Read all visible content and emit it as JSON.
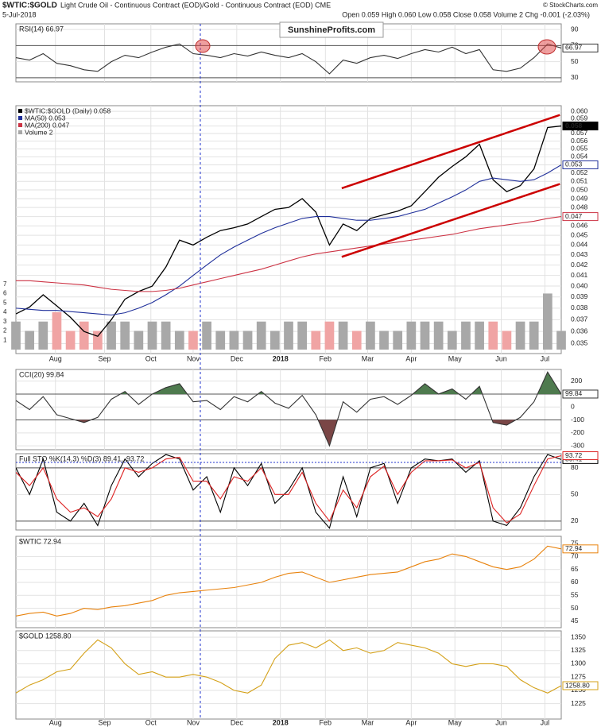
{
  "header": {
    "title": "$WTIC:$GOLD",
    "subtitle": "Light Crude Oil - Continuous Contract (EOD)/Gold - Continuous Contract (EOD) CME",
    "date": "5-Jul-2018",
    "quote": "Open 0.059 High 0.060 Low 0.058 Close 0.058 Volume 2 Chg -0.001 (-2.03%)",
    "credit": "© StockCharts.com",
    "watermark": "SunshineProfits.com"
  },
  "time": {
    "x": [
      0,
      1,
      2,
      3,
      4,
      5,
      6,
      7,
      8,
      9,
      10,
      11,
      12,
      13,
      14,
      15,
      16,
      17,
      18,
      19,
      20,
      21,
      22,
      23,
      24,
      25,
      26,
      27,
      28,
      29,
      30,
      31,
      32,
      33,
      34,
      35,
      36,
      37,
      38,
      39,
      40
    ],
    "xlim": [
      0,
      40
    ],
    "xticks": [
      {
        "value": 2.9,
        "label": "Aug"
      },
      {
        "value": 6.5,
        "label": "Sep"
      },
      {
        "value": 9.9,
        "label": "Oct"
      },
      {
        "value": 13,
        "label": "Nov"
      },
      {
        "value": 16.2,
        "label": "Dec"
      },
      {
        "value": 19.4,
        "label": "2018"
      },
      {
        "value": 22.7,
        "label": "Feb"
      },
      {
        "value": 25.8,
        "label": "Mar"
      },
      {
        "value": 29,
        "label": "Apr"
      },
      {
        "value": 32.2,
        "label": "May"
      },
      {
        "value": 35.6,
        "label": "Jun"
      },
      {
        "value": 38.8,
        "label": "Jul"
      }
    ]
  },
  "chart_data": [
    {
      "type": "line",
      "title": "RSI(14) 66.97",
      "ylim": [
        25,
        97
      ],
      "yticks": [
        30,
        50,
        70,
        90
      ],
      "ref_lines": [
        30,
        70
      ],
      "grid": true,
      "series": [
        {
          "name": "RSI(14)",
          "color": "#333333",
          "values": [
            55,
            52,
            60,
            48,
            45,
            40,
            38,
            50,
            58,
            55,
            62,
            68,
            72,
            60,
            58,
            55,
            60,
            57,
            62,
            58,
            55,
            60,
            50,
            35,
            52,
            48,
            55,
            58,
            54,
            60,
            65,
            62,
            68,
            60,
            65,
            40,
            38,
            42,
            55,
            72,
            66.97
          ]
        }
      ]
    },
    {
      "type": "line",
      "log_scale": true,
      "grid": true,
      "ylim": [
        0.0342,
        0.0608
      ],
      "yticks": [
        0.035,
        0.036,
        0.037,
        0.038,
        0.039,
        {
          "value": 0.04,
          "label": "0.040"
        },
        0.041,
        0.042,
        0.043,
        0.044,
        0.045,
        0.046,
        0.047,
        0.048,
        0.049,
        {
          "value": 0.05,
          "label": "0.050"
        },
        0.051,
        0.052,
        0.053,
        0.054,
        0.055,
        0.056,
        0.057,
        0.058,
        0.059,
        {
          "value": 0.06,
          "label": "0.060"
        }
      ],
      "series": [
        {
          "name": "$WTIC:$GOLD (Daily) 0.058",
          "color": "#000000",
          "values": [
            0.0375,
            0.0381,
            0.0392,
            0.0382,
            0.0372,
            0.036,
            0.0356,
            0.037,
            0.0388,
            0.0395,
            0.04,
            0.0418,
            0.0445,
            0.044,
            0.0448,
            0.0455,
            0.0458,
            0.0462,
            0.047,
            0.0478,
            0.048,
            0.049,
            0.0475,
            0.044,
            0.0462,
            0.0455,
            0.0468,
            0.0472,
            0.0476,
            0.0482,
            0.0498,
            0.0515,
            0.0528,
            0.054,
            0.0556,
            0.0512,
            0.0498,
            0.0505,
            0.0525,
            0.0578,
            0.058
          ]
        },
        {
          "name": "MA(50) 0.053",
          "color": "#1f2f9a",
          "values": [
            0.038,
            0.0379,
            0.0378,
            0.0378,
            0.0377,
            0.0376,
            0.0375,
            0.0374,
            0.0376,
            0.038,
            0.0385,
            0.0392,
            0.04,
            0.041,
            0.042,
            0.043,
            0.0438,
            0.0445,
            0.0452,
            0.0458,
            0.0463,
            0.0468,
            0.047,
            0.047,
            0.0468,
            0.0466,
            0.0466,
            0.0468,
            0.047,
            0.0474,
            0.0478,
            0.0485,
            0.0492,
            0.05,
            0.051,
            0.0514,
            0.0512,
            0.051,
            0.0512,
            0.052,
            0.053
          ]
        },
        {
          "name": "MA(200) 0.047",
          "color": "#cc3344",
          "values": [
            0.0405,
            0.0405,
            0.0404,
            0.0403,
            0.0402,
            0.0401,
            0.0399,
            0.0397,
            0.0396,
            0.0395,
            0.0395,
            0.0396,
            0.0398,
            0.0401,
            0.0404,
            0.0407,
            0.041,
            0.0413,
            0.0416,
            0.042,
            0.0424,
            0.0428,
            0.0431,
            0.0433,
            0.0435,
            0.0437,
            0.0439,
            0.0441,
            0.0443,
            0.0445,
            0.0447,
            0.0449,
            0.0451,
            0.0454,
            0.0457,
            0.0459,
            0.0461,
            0.0463,
            0.0465,
            0.0468,
            0.047
          ]
        }
      ],
      "trend_lines": [
        {
          "color": "#cc0000",
          "x": [
            23.9,
            39.9
          ],
          "y": [
            0.0502,
            0.0595
          ]
        },
        {
          "color": "#cc0000",
          "x": [
            23.9,
            39.9
          ],
          "y": [
            0.0428,
            0.0507
          ]
        }
      ],
      "volume": {
        "name": "Volume 2",
        "up_color": "#a8a8a8",
        "down_color": "#f0a4a4",
        "ylim": [
          0,
          8.5
        ],
        "yticks": [
          1,
          2,
          3,
          4,
          5,
          6,
          7
        ],
        "values": [
          3,
          2,
          3,
          4,
          2,
          3,
          2,
          3,
          3,
          2,
          3,
          3,
          2,
          2,
          3,
          2,
          2,
          2,
          3,
          2,
          3,
          3,
          2,
          3,
          3,
          2,
          3,
          2,
          2,
          3,
          3,
          3,
          2,
          3,
          3,
          3,
          2,
          3,
          3,
          6,
          2
        ]
      }
    },
    {
      "type": "line",
      "title": "CCI(20) 99.84",
      "ylim": [
        -330,
        290
      ],
      "yticks": [
        -300,
        -200,
        -100,
        0,
        100,
        200
      ],
      "ref_lines": [
        -100,
        100
      ],
      "grid": true,
      "fills": [
        {
          "above": 100,
          "color": "#4e7a4e"
        },
        {
          "below": -100,
          "color": "#7a4646"
        }
      ],
      "series": [
        {
          "name": "CCI(20)",
          "color": "#333333",
          "values": [
            50,
            -20,
            80,
            -60,
            -90,
            -120,
            -80,
            60,
            120,
            20,
            100,
            150,
            180,
            40,
            50,
            -20,
            80,
            40,
            120,
            30,
            -10,
            90,
            -60,
            -300,
            40,
            -40,
            60,
            80,
            20,
            90,
            180,
            100,
            140,
            60,
            160,
            -120,
            -140,
            -80,
            40,
            270,
            99.84
          ]
        }
      ]
    },
    {
      "type": "line",
      "title": "Full STO %K(14,3) %D(3) 89.41,",
      "ylim": [
        10,
        96
      ],
      "yticks": [
        20,
        50,
        80
      ],
      "ref_lines": [
        20,
        80
      ],
      "grid": true,
      "series": [
        {
          "name": "%K(14,3)",
          "color": "#000000",
          "values": [
            80,
            50,
            90,
            30,
            20,
            40,
            15,
            60,
            90,
            70,
            85,
            95,
            90,
            55,
            70,
            30,
            80,
            60,
            85,
            40,
            55,
            80,
            30,
            12,
            70,
            25,
            80,
            85,
            40,
            80,
            90,
            88,
            90,
            75,
            88,
            20,
            15,
            35,
            70,
            95,
            89.41
          ]
        },
        {
          "name": "%D(3)",
          "color": "#dd2222",
          "values": [
            75,
            60,
            80,
            45,
            30,
            35,
            25,
            45,
            80,
            75,
            80,
            90,
            92,
            65,
            65,
            45,
            70,
            65,
            80,
            50,
            50,
            75,
            40,
            20,
            55,
            35,
            70,
            82,
            50,
            75,
            88,
            88,
            89,
            80,
            86,
            35,
            18,
            28,
            60,
            90,
            93.72
          ]
        }
      ]
    },
    {
      "type": "line",
      "title": "$WTIC 72.94",
      "ylim": [
        42.5,
        77.8
      ],
      "yticks": [
        45,
        50,
        55,
        60,
        65,
        70,
        75
      ],
      "grid": true,
      "series": [
        {
          "name": "$WTIC",
          "color": "#e8820c",
          "values": [
            47,
            48,
            48.5,
            47,
            48,
            50,
            49.5,
            50.5,
            51,
            52,
            53,
            55,
            56,
            56.5,
            57,
            57.5,
            58,
            59,
            60,
            62,
            63.5,
            64,
            62,
            60,
            61,
            62,
            63,
            63.5,
            64,
            66,
            68,
            69,
            71,
            70,
            68,
            66,
            65,
            66,
            69,
            74,
            72.94
          ]
        }
      ]
    },
    {
      "type": "line",
      "title": "$GOLD 1258.80",
      "ylim": [
        1196,
        1362
      ],
      "yticks": [
        1225,
        1250,
        1275,
        1300,
        1325,
        1350
      ],
      "grid": true,
      "series": [
        {
          "name": "$GOLD",
          "color": "#d4a017",
          "values": [
            1245,
            1260,
            1270,
            1285,
            1290,
            1320,
            1345,
            1330,
            1300,
            1280,
            1285,
            1275,
            1275,
            1280,
            1275,
            1265,
            1250,
            1245,
            1260,
            1310,
            1335,
            1340,
            1330,
            1345,
            1325,
            1330,
            1320,
            1325,
            1340,
            1335,
            1330,
            1320,
            1300,
            1295,
            1300,
            1300,
            1295,
            1270,
            1255,
            1245,
            1258.8
          ],
          "value_labels": [
            null,
            null,
            null,
            null,
            null,
            null,
            null,
            null,
            null,
            null,
            null,
            null,
            null,
            null,
            null,
            null,
            null,
            null,
            null,
            null,
            null,
            null,
            null,
            null,
            null,
            null,
            null,
            null,
            null,
            null,
            null,
            null,
            null,
            null,
            null,
            null,
            null,
            null,
            null,
            null,
            "1258.80"
          ]
        }
      ]
    }
  ]
}
